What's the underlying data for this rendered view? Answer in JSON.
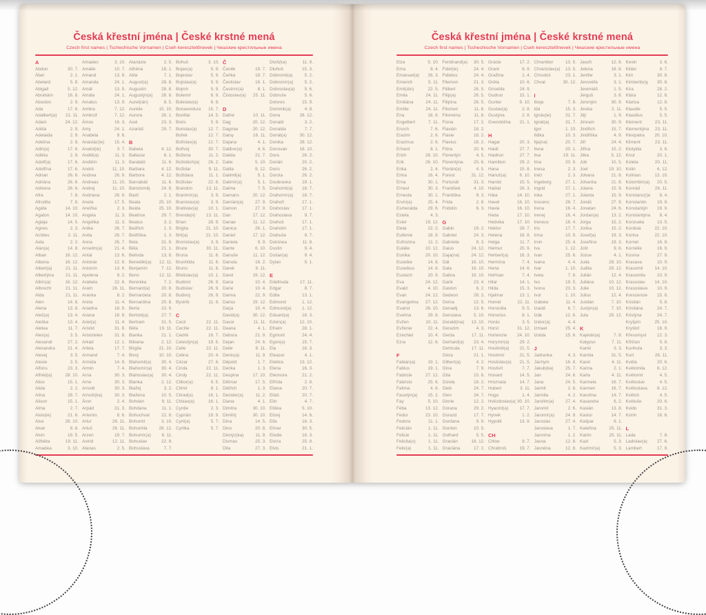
{
  "colors": {
    "accent": "#e23a52",
    "ink": "#9c9488",
    "page_bg": "#fcf3e7"
  },
  "header": {
    "title": "Česká křestní jména | České krstné mená",
    "subtitle": "Czech first names | Tschechische Vornamen | Cseh keresztelőnevek | Чешские крестильные имена"
  },
  "pages": [
    {
      "columns": [
        [
          "#A",
          "Abdon|30. 7.",
          "Ábel|2. 1.",
          "Abelard|5. 8.",
          "Abigail|5. 12.",
          "Abrahám|16. 8.",
          "Absolon|2. 9.",
          "Ada|17. 6.",
          "Adalbert(a)|21. 11.",
          "Adam|24. 12.",
          "Adéla|2. 9.",
          "Adelaida|2. 9.",
          "Adelína|2. 9.",
          "Adin(a)|17. 6.",
          "Adléta|2. 9.",
          "Adolf(a)|17. 6.",
          "Adolfína|17. 6.",
          "Adrian|26. 6.",
          "Adriána|26. 6.",
          "Adriena|26. 6.",
          "Afra|7. 8.",
          "Afrodita|7. 8.",
          "Agáta|14. 10.",
          "Agaton|14. 10.",
          "Aglaja|14. 5.",
          "Agnes|2. 3.",
          "Achiles|2. 11.",
          "Aida|2. 2.",
          "Alan(a)|14. 8.",
          "Alban|16. 12.",
          "Albena|16. 12.",
          "Albert(a)|21. 11.",
          "Albertýna|21. 11.",
          "Albín(a)|16. 12.",
          "Albrecht|21. 11.",
          "Alda|21. 11.",
          "Alen|14. 8.",
          "Alena|13. 8.",
          "Aleš(a)|13. 4.",
          "Aleška|13. 4.",
          "Aletea|11. 7.",
          "Alex(a)|3. 5.",
          "Alexandr|27. 2.",
          "Alexandra|21. 4.",
          "Alexej|3. 5.",
          "Alexie|3. 5.",
          "Alfons|23. 3.",
          "Alfréd(a)|28. 10.",
          "Alice|15. 1.",
          "Alida|2. 2.",
          "Alina|28. 7.",
          "Alison|15. 1.",
          "Alma|2. 7.",
          "Alois(ie)|21. 6.",
          "Alva|28. 10.",
          "Alvar|8. 8.",
          "Alvin|19. 5.",
          "Alžběta|19. 11.",
          "Amadea|3. 10."
        ],
        [
          "Amadeo|3. 10.",
          "Amálie|10. 7.",
          "Amand|13. 9.",
          "Amanda|24. 1.",
          "Amát|13. 9.",
          "Amáta|24. 1.",
          "Amatus|13. 9.",
          "Ambra|7. 12.",
          "Ambrož|7. 12.",
          "Ámos|16. 3.",
          "Amy|24. 1.",
          "Anabela|9. 6.",
          "Anastáz(ie)|15. 4.",
          "Anatol(ie)|3. 7.",
          "Anděl(a)|11. 3.",
          "Andělín|11. 3.",
          "André|11. 10.",
          "Andrea|26. 9.",
          "Andreas|11. 10.",
          "Andrej|11. 10.",
          "Andriana|26. 9.",
          "Aneta|17. 5.",
          "Anežka|2. 3.",
          "Angela|11. 3.",
          "Angelika|11. 3.",
          "Anika|26. 7.",
          "Anita|26. 7.",
          "Anna|26. 7.",
          "Anselm(a)|21. 4.",
          "Antal|13. 6.",
          "Antonie|12. 6.",
          "Antonín|13. 6.",
          "Apolena|9. 2.",
          "Arabela|22. 6.",
          "Aram|26. 11.",
          "Aranka|8. 2.",
          "Areta|11. 4.",
          "Ariadna|18. 9.",
          "Ariana|18. 9.",
          "Ariel(a)|11. 4.",
          "Aristid|31. 8.",
          "Aristoteles|31. 8.",
          "Arkád|12. 1.",
          "Arleta|17. 7.",
          "Armand|7. 4.",
          "Armida|14. 9.",
          "Armin|7. 4.",
          "Arna|30. 3.",
          "Arne|30. 3.",
          "Arnold|30. 3.",
          "Arnošt(ka)|30. 3.",
          "Áron|2. 4.",
          "Arpád|31. 3.",
          "Artemis|8. 6.",
          "Artur|26. 11.",
          "Artuš|26. 11.",
          "Arzen|19. 7.",
          "Astrid|12. 11.",
          "Atanas|2. 5."
        ],
        [
          "Atanázie|2. 5.",
          "Athéna|18. 1.",
          "Atila|7. 1.",
          "August(a)|28. 8.",
          "Augustin|28. 8.",
          "Augustýn(a)|28. 8.",
          "Aurel(ián)|8. 5.",
          "Aurélie|15. 10.",
          "Aurora|26. 1.",
          "Axel|23. 3.",
          "Azariáš|29. 7.",
          "",
          "#B",
          "Babeta|4. 12.",
          "Baltazar|6. 1.",
          "Barabáš|11. 6.",
          "Barbara|4. 12.",
          "Barbora|4. 12.",
          "Barnabáš|11. 6.",
          "Bartoloměj|24. 8.",
          "Bazil|2. 1.",
          "Beata|25. 10.",
          "Beáta|25. 10.",
          "Beatrice|29. 7.",
          "Beatus|3. 2.",
          "Bedřich|1. 3.",
          "Bedřiška|1. 3.",
          "Bela|31. 8.",
          "Běla|21. 1.",
          "Belinda|13. 8.",
          "Benedikt(a)|12. 11.",
          "Benjamín|7. 12.",
          "Beno|12. 11.",
          "Berenika|7. 2.",
          "Bernard(a)|20. 8.",
          "Bernardeta|20. 8.",
          "Bernardina|20. 8.",
          "Berta|23. 9.",
          "Bertold(a)|27. 7.",
          "Bertram|31. 5.",
          "Běta|19. 11.",
          "Bianka|21. 1.",
          "Bibiana|2. 12.",
          "Birgita|21. 10.",
          "Bivoj|10. 10.",
          "Blahomil(a)|30. 4.",
          "Blahomír(a)|30. 4.",
          "Blahoslav(a)|30. 4.",
          "Blanka|2. 12.",
          "Blažej|3. 2.",
          "Blažena|10. 5.",
          "Bohdan|9. 11.",
          "Bohdana|11. 1.",
          "Bohuchval|22. 8.",
          "Bohumil|3. 10.",
          "Bohumila|28. 12.",
          "Bohumír(a)|8. 11.",
          "Bohuslav|22. 8.",
          "Bohuslava|7. 7."
        ],
        [
          "Bohuš|3. 10.",
          "Bojan(a)|5. 9.",
          "Bojeslav|5. 9.",
          "Bojislav(a)|5. 9.",
          "Bojmír|5. 9.",
          "Bolemír|6. 9.",
          "Boleslav(a)|6. 9.",
          "Bonaventura|15. 7.",
          "Bonifác|14. 5.",
          "Boris|5. 9.",
          "Borislav(a)|12. 7.",
          "Bořek|12. 7.",
          "Bořislav(a)|12. 7.",
          "Bořivoj|30. 7.",
          "Božena|11. 2.",
          "Božetěch(a)|26. 2.",
          "Božidar|9. 11.",
          "Božidara|11. 1.",
          "Božislav|22. 8.",
          "Brandon|13. 11.",
          "Branimír(a)|3. 9.",
          "Branislav(a)|3. 9.",
          "Bratislav(a)|10. 1.",
          "Brenda(n)|13. 11.",
          "Brian|28. 9.",
          "Brigita|21. 10.",
          "Brit(a)|21. 10.",
          "Bronislav(a)|3. 9.",
          "Bruce|30. 11.",
          "Bruna|11. 6.",
          "Brunhilda|11. 6.",
          "Bruno|11. 6.",
          "Břetislav(a)|10. 1.",
          "Budimír|26. 9.",
          "Budislav|26. 9.",
          "Budivoj|26. 9.",
          "Bystrík|11. 9.",
          "",
          "#C",
          "Cecil|22. 11.",
          "Cecílie|22. 11.",
          "Cedrik|16. 7.",
          "Celestýn(a)|19. 5.",
          "Celie|22. 11.",
          "Celina|20. 4.",
          "Cézar|27. 8.",
          "Cinda|22. 11.",
          "Cindy|22. 11.",
          "Ctibor(a)|9. 5.",
          "Ctimír|8. 1.",
          "Ctirad(a)|16. 1.",
          "Ctislav(a)|16. 1.",
          "Cyntie|2. 3.",
          "Cyprián|19. 9.",
          "Cyril(a)|5. 7.",
          "Cyrilka|5. 7."
        ],
        [
          "#Č",
          "Čeněk|19. 7.",
          "Čeňka|19. 7.",
          "Čestislav|16. 1.",
          "Čestmír(a)|8. 1.",
          "Čistoslav(a)|25. 11.",
          "",
          "#D",
          "Dafné|10. 11.",
          "Dag|20. 12.",
          "Dagmar|20. 12.",
          "Daisy|16. 11.",
          "Dajana|4. 1.",
          "Dalibor(a)|4. 6.",
          "Dalida|21. 7.",
          "Dalie|5. 10.",
          "Dalila|9. 12.",
          "Dalimil(a)|5. 1.",
          "Dalimír(a)|5. 1.",
          "Dalma|7. 5.",
          "Damaris|20. 12.",
          "Damián(a)|27. 9.",
          "Damon|27. 9.",
          "Dan|17. 12.",
          "Danae|11. 12.",
          "Danica|26. 1.",
          "Daniel|17. 12.",
          "Daniela|9. 9.",
          "Dante|6. 10.",
          "Danuše|11. 12.",
          "Danuta|16. 2.",
          "Darek|9. 11.",
          "Darel|19. 12.",
          "Daria|10. 4.",
          "Darie|10. 4.",
          "Darina|22. 9.",
          "Darius|19. 12.",
          "Darja|10. 4.",
          "David(a)|30. 12.",
          "Davor|11. 11.",
          "Deana|4. 1.",
          "Debora|21. 9.",
          "Dejan|24. 6.",
          "Delie|8. 11.",
          "Denis(a)|11. 9.",
          "Děpold|1. 7.",
          "Derika|1. 3.",
          "Despina|17. 10.",
          "Dětmar|17. 5.",
          "Dětřich|1. 3.",
          "Dezider(a)|11. 2.",
          "Diana|4. 1.",
          "Dimitra|30. 10.",
          "Dimitrij|30. 10.",
          "Dina|14. 5.",
          "Dino|20. 8.",
          "Dionýz(ka)|11. 9.",
          "Dismas|25. 3.",
          "Dita|27. 3."
        ],
        [
          "Diviš(ka)|11. 9.",
          "Dluhoš|15. 3.",
          "Dobromil(a)|5. 2.",
          "Dobromír(a)|5. 2.",
          "Dobroslav(a)|5. 6.",
          "Dobruše|5. 6.",
          "Dolores|15. 9.",
          "Dominik(a)|4. 8.",
          "Dona|28. 12.",
          "Donald|3. 2.",
          "Donalda|7. 7.",
          "Donát(a)|30. 12.",
          "Donika|28. 12.",
          "Donovan|18. 10.",
          "Dora|26. 2.",
          "Dorián|20. 2.",
          "Doris|26. 2.",
          "Dorota|26. 2.",
          "Doubravka|19. 1.",
          "Drahomil(a)|18. 7.",
          "Drahomír(a)|18. 7.",
          "Drahoň|17. 1.",
          "Drahoslav|17. 1.",
          "Drahoslava|9. 7.",
          "Drahoš|17. 1.",
          "Drahotín|17. 1.",
          "Drahuše|9. 7.",
          "Dulcinea|11. 8.",
          "Dustin|9. 4.",
          "Dušan(a)|9. 4.",
          "Dylan|5. 1.",
          "",
          "#E",
          "Edeltruda|17. 11.",
          "Edgar|8. 7.",
          "Edita|13. 1.",
          "Edmond|1. 12.",
          "Edmund(a)|1. 12.",
          "Eduard(a)|18. 3.",
          "Edvin(a)|12. 10.",
          "Efraim|28. 1.",
          "Egmont|24. 4.",
          "Egon(a)|15. 7.",
          "Ela|16. 3.",
          "Eleazar|4. 1.",
          "Elektra|13. 12.",
          "Elena|16. 3.",
          "Eleonora|21. 2.",
          "Elfrída|2. 8.",
          "Eliana|20. 7.",
          "Eliáš|20. 7.",
          "Elin|4. 7.",
          "Eliška|5. 10.",
          "Elizej|14. 6.",
          "Ella|16. 3.",
          "Elmar|30. 5.",
          "Elodie|16. 3.",
          "Elvíra|25. 8.",
          "Elvis|21. 1."
        ]
      ]
    },
    {
      "columns": [
        [
          "Elza|5. 10.",
          "Ema|8. 4.",
          "Emanuel(a)|26. 3.",
          "Emerich|5. 11.",
          "Emil(ián)|22. 5.",
          "Emila|24. 11.",
          "Emiliána|24. 11.",
          "Emílie|24. 11.",
          "Ena|18. 8.",
          "Engelbert|7. 11.",
          "Enoch|7. 6.",
          "Erazim|2. 6.",
          "Erazmus|2. 6.",
          "Erhard|8. 1.",
          "Erich|26. 10.",
          "Erik|26. 10.",
          "Erika|2. 4.",
          "Erina|16. 4.",
          "Erna|30. 1.",
          "Ernest|30. 3.",
          "Ernesta|30. 1.",
          "Ervín(a)|25. 4.",
          "Esmeralda|29. 6.",
          "Estela|4. 3.",
          "Ester|19. 12.",
          "Etela|22. 2.",
          "Eufémie|18. 9.",
          "Eufrozina|11. 2.",
          "Eulálie|10. 12.",
          "Eunika|20. 10.",
          "Eusebie|14. 8.",
          "Eusebius|14. 8.",
          "Eustach|20. 9.",
          "Eva|24. 12.",
          "Evald|4. 10.",
          "Evan|24. 12.",
          "Evangelína|27. 12.",
          "Evarist|26. 10.",
          "Evelína|29. 8.",
          "Evžen|10. 11.",
          "Evženie|22. 4.",
          "Ezechiel|10. 4.",
          "Ezra|12. 6.",
          "",
          "#F",
          "Fabián(a)|19. 1.",
          "Fabius|19. 1.",
          "Fabricie|27. 12.",
          "Fabricio|25. 6.",
          "Fatima|4. 6.",
          "Faustýn(a)|15. 2.",
          "Fay|5. 10.",
          "Féba|13. 12.",
          "Fedor|23. 10.",
          "Fedora|11. 1.",
          "Felicián|1. 11.",
          "Felicie|1. 11.",
          "Felicita(s)|1. 11.",
          "Felix(a)|1. 11."
        ],
        [
          "Ferdinand(a)|30. 5.",
          "Fidel(ie)|24. 4.",
          "Fidelius|24. 4.",
          "Filemon|21. 3.",
          "Filibert|26. 5.",
          "Filip(a)|26. 5.",
          "Filipína|26. 5.",
          "Filomen|11. 8.",
          "Filoména|11. 8.",
          "Fiona|17. 2.",
          "Flavián|18. 2.",
          "Flavie|18. 2.",
          "Flavius|18. 2.",
          "Flóra|20. 6.",
          "Florentýn|4. 5.",
          "Florentýna|20. 6.",
          "Florián(a)|4. 5.",
          "Forest|31. 12.",
          "Fortunát|31. 3.",
          "František|4. 10.",
          "Františka|9. 3.",
          "Frída|2. 8.",
          "Fridolín|6. 3.",
          "",
          "#G",
          "Gabin|19. 2.",
          "Gabriel|24. 3.",
          "Gabriela|8. 3.",
          "Gaius|24. 12.",
          "Gaja(na)|24. 12.",
          "Gál|16. 10.",
          "Gala|16. 10.",
          "Galina|16. 10.",
          "Garik|23. 4.",
          "Gaston|6. 2.",
          "Gedeon|28. 3.",
          "Gema|12. 5.",
          "Genadij|13. 6.",
          "Genciana|5. 10.",
          "Gerald(ina)|13. 10.",
          "Gerazim|4. 3.",
          "Gerda|17. 11.",
          "Gerhard(a)|23. 4.",
          "Gertruda|17. 11.",
          "Géza|21. 1.",
          "Gilbert(a)|4. 2.",
          "Gina|7. 9.",
          "Gita|10. 6.",
          "Gizela|18. 2.",
          "Gleb|24. 7.",
          "Glen|24. 7.",
          "Glorie|12. 2.",
          "Gorana|29. 2.",
          "Gorazd|17. 7.",
          "Gordana|9. 9.",
          "Gordon|10. 5.",
          "Gothard|5. 5.",
          "Gracián|18. 12.",
          "Graciána|17. 2."
        ],
        [
          "Grácie|17. 2.",
          "Grant|6. 9.",
          "Gražina|1. 4.",
          "Gréta|10. 6.",
          "Griselda|24. 9.",
          "Gudrun|15. 1.",
          "Gunter|9. 10.",
          "Gustav(a)|2. 8.",
          "Gustýna|2. 8.",
          "Gvendolína|21. 1.",
          "",
          "#H",
          "Hagar|20. 3.",
          "Haidi|27. 7.",
          "Haidrun|27. 7.",
          "Hamilton|29. 2.",
          "Hana|15. 8.",
          "Hanuš(a)|6. 10.",
          "Harold|15. 5.",
          "Haštal|26. 3.",
          "Háta|14. 10.",
          "Havel|16. 10.",
          "Havla|16. 10.",
          "Heda|17. 10.",
          "Hedvika|17. 10.",
          "Hektor|28. 7.",
          "Helena|18. 8.",
          "Helga|11. 7.",
          "Helmut|20. 9.",
          "Herbert(a)|16. 3.",
          "Hermína|7. 4.",
          "Herta|14. 6.",
          "Heřman|7. 4.",
          "Hilar|14. 1.",
          "Hilda|15. 3.",
          "Hjalmar|13. 1.",
          "Homér|22. 11.",
          "Honoráta|9. 5.",
          "Honorius|8. 1.",
          "Horác|3. 5.",
          "Horst|31. 12.",
          "Hortenzie|24. 10.",
          "Horymír(a)|29. 2.",
          "Hostimil(a)|21. 5.",
          "Hostimír|21. 5.",
          "Hostislav(a)|21. 5.",
          "Hostivít|7. 7.",
          "Hovard|14. 5.",
          "Hroznata|14. 7.",
          "Hubert|3. 11.",
          "Hugo|1. 4.",
          "Hvězdoslav(a)|30. 10.",
          "Hyacint(a)|17. 7.",
          "Hynek|1. 2.",
          "Hypolit|13. 8.",
          "",
          "#CH",
          "Chloe|9. 7.",
          "Chrabroš|19. 7."
        ],
        [
          "Chranibor|13. 5.",
          "Chranislav(a)|13. 5.",
          "Chrudoš|23. 1.",
          "Chval|30. 12.",
          "",
          "#I",
          "Iboja|7. 8.",
          "Ida|15. 3.",
          "Ignác(ie)|31. 7.",
          "Ignát(a)|31. 7.",
          "Igor|1. 10.",
          "Ildika|10. 3.",
          "Ilja(na)|20. 7.",
          "Ilona|20. 1.",
          "Ilsa|19. 11.",
          "Ima|20. 9.",
          "Inesa|2. 3.",
          "Inéz|2. 3.",
          "Ingeborg|27. 1.",
          "Ingrid|27. 1.",
          "Inka|27. 1.",
          "Inocenc|28. 7.",
          "Irena|16. 4.",
          "Irenej|16. 4.",
          "Ireneus|16. 4.",
          "Iris|17. 7.",
          "Irma|10. 9.",
          "Irvin|25. 4.",
          "Iva|1. 12.",
          "Ivan|25. 6.",
          "Ivana|4. 4.",
          "Ivar|1. 10.",
          "Iveta|7. 6.",
          "Ivo|19. 5.",
          "Ivona|23. 3.",
          "Ivor|1. 10.",
          "Izabela|11. 4.",
          "Izaiáš|6. 7.",
          "Izák|12. 6.",
          "Izidor(a)|4. 4.",
          "Izmael|25. 4.",
          "Izolda|15. 6.",
          "",
          "#J",
          "Jadranka|4. 3.",
          "Jáchym|16. 8.",
          "Jakub(ka)|25. 7.",
          "Jan|24. 6.",
          "Jana|24. 5.",
          "Jarmil|2. 6.",
          "Jarmila|4. 2.",
          "Jarolím(a)|27. 4.",
          "Jaromil|2. 6.",
          "Jaromír(a)|24. 9.",
          "Jaroslav|27. 4.",
          "Jaroslava|1. 7.",
          "Jasmína|1. 2.",
          "Jasna|12. 8.",
          "Jasněna|12. 8."
        ],
        [
          "Jasoň|12. 8.",
          "Jelena|18. 8.",
          "Jenifer|3. 1.",
          "Jenovéfa|3. 1.",
          "Jeremiáš|1. 5.",
          "Jerguš|3. 8.",
          "Jeroným|30. 9.",
          "Jesika|2. 11.",
          "Jiljí|1. 9.",
          "Jimram|30. 9.",
          "Jindřich|15. 7.",
          "Jindřiška|4. 9.",
          "Jiří|24. 4.",
          "Jiřina|15. 2.",
          "Jitka|5. 12.",
          "Job|10. 5.",
          "Joel|19. 10.",
          "Johana|21. 8.",
          "Johanka|21. 8.",
          "Jolana|15. 9.",
          "Jolanta|15. 9.",
          "Jonáš|27. 9.",
          "Jonatan|24. 6.",
          "Jordan(a)|13. 2.",
          "Jorga|15. 2.",
          "Jorika|15. 2.",
          "Josef(a)|19. 3.",
          "Josefína|19. 3.",
          "Jošt|9. 6.",
          "Jozue|4. 1.",
          "Juda|28. 10.",
          "Judita|29. 12.",
          "Julián|12. 4.",
          "Juliána|10. 12.",
          "Julie|10. 12.",
          "Julius|12. 4.",
          "Justián|7. 10.",
          "Justýn(a)|7. 10.",
          "Juta|29. 12.",
          "",
          "#K",
          "Kajetán(a)|7. 8.",
          "Kalypso|7. 11.",
          "Kamil|3. 3.",
          "Kamila|31. 5.",
          "Karel|4. 11.",
          "Karina|2. 1.",
          "Karla|4. 11.",
          "Karmela|16. 7.",
          "Karmen|16. 7.",
          "Karolína|14. 7.",
          "Kasandra|6. 2.",
          "Kasián|13. 8.",
          "Kastor|14. 7.",
          "Kašpar|6. 1.",
          "Kateřina|25. 11.",
          "Katrin|25. 11.",
          "Kazi|5. 3.",
          "Kazimír(a)|5. 3."
        ],
        [
          "Kevin|3. 6.",
          "Kilián|8. 7.",
          "Kim|30. 8.",
          "Kimberl(e)y|30. 8.",
          "Kira|28. 2.",
          "Klára|12. 8.",
          "Klarisa|12. 8.",
          "Klaudie|5. 5.",
          "Klaudius|5. 5.",
          "Klement|23. 11.",
          "Klementýna|23. 11.",
          "Kleopatra|20. 10.",
          "Kliment|23. 11.",
          "Klotylda|3. 6.",
          "Knut|20. 1.",
          "Koleta|20. 11.",
          "Kolin|6. 12.",
          "Kolman|13. 10.",
          "Kolombín(a)|20. 5.",
          "Konrád|26. 11.",
          "Konstanc(i)e|8. 4.",
          "Konstantin|19. 9.",
          "Konstantýn|19. 9.",
          "Konstantýna|8. 4.",
          "Konzuela|13. 5.",
          "Kordula|22. 10.",
          "Korina|22. 10.",
          "Kornel|16. 9.",
          "Kornélie|16. 9.",
          "Kosma|27. 9.",
          "Krasava|10. 9.",
          "Krasomil|14. 10.",
          "Krasomila|10. 9.",
          "Krasoslav|14. 10.",
          "Krasoslava|10. 9.",
          "Krescencie|15. 6.",
          "Kristián|5. 8.",
          "Kristiána|24. 7.",
          "Kristýna|24. 7.",
          "Kryšpín|25. 10.",
          "Kryštof|18. 9.",
          "Křesomysl|12. 3.",
          "Křišťan|5. 8.",
          "Kunhuta|3. 3.",
          "Kurt|26. 11.",
          "Květa|20. 6.",
          "Květomila|8. 12.",
          "Květomír|4. 5.",
          "Květoslav|4. 5.",
          "Květoslava|8. 12.",
          "Květoš|4. 5.",
          "Květuše|20. 6.",
          "Kvido|31. 3.",
          "Kvirin|16. 6.",
          "",
          "#L",
          "Lada|7. 8.",
          "Ladislav(a)|27. 6.",
          "Lambert|17. 9."
        ]
      ]
    }
  ]
}
